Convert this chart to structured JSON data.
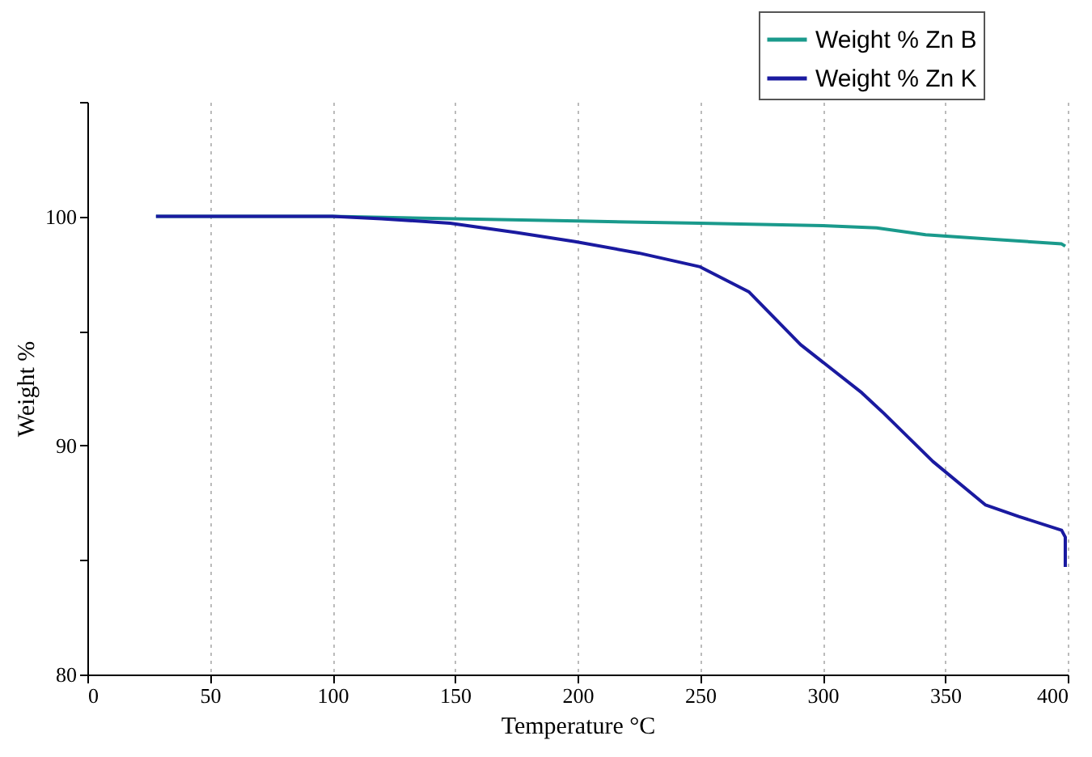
{
  "chart_data": {
    "type": "line",
    "xlabel": "Temperature °C",
    "ylabel": "Weight %",
    "xlim": [
      0,
      400
    ],
    "xticks": [
      0,
      50,
      100,
      150,
      200,
      250,
      300,
      350,
      400
    ],
    "ylim": [
      80,
      105
    ],
    "yticks": [
      80,
      {
        "value": 85,
        "label": null
      },
      90,
      {
        "value": 95,
        "label": null
      },
      100,
      {
        "value": 105,
        "label": null
      }
    ],
    "grid": "x",
    "legend": "top right",
    "line_style": "solid",
    "marker": "none",
    "series": [
      {
        "name": "Weight % Zn B",
        "color": "#1a9a8c",
        "x": [
          28,
          50,
          100,
          150,
          200,
          250,
          300,
          322,
          342,
          370,
          397.5,
          399
        ],
        "values": [
          100.0,
          100.0,
          100.0,
          99.9,
          99.8,
          99.7,
          99.6,
          99.5,
          99.2,
          99.0,
          98.8,
          98.7
        ]
      },
      {
        "name": "Weight % Zn K",
        "color": "#1a1aa0",
        "x": [
          28,
          50,
          100,
          120,
          148,
          175,
          199,
          225,
          250,
          270,
          291,
          316,
          325,
          345,
          366.5,
          380,
          397.5,
          399,
          399
        ],
        "values": [
          100.0,
          100.0,
          100.0,
          99.9,
          99.7,
          99.3,
          98.9,
          98.4,
          97.8,
          96.7,
          94.4,
          92.3,
          91.4,
          89.3,
          87.4,
          86.9,
          86.3,
          86.0,
          84.7
        ]
      }
    ]
  }
}
